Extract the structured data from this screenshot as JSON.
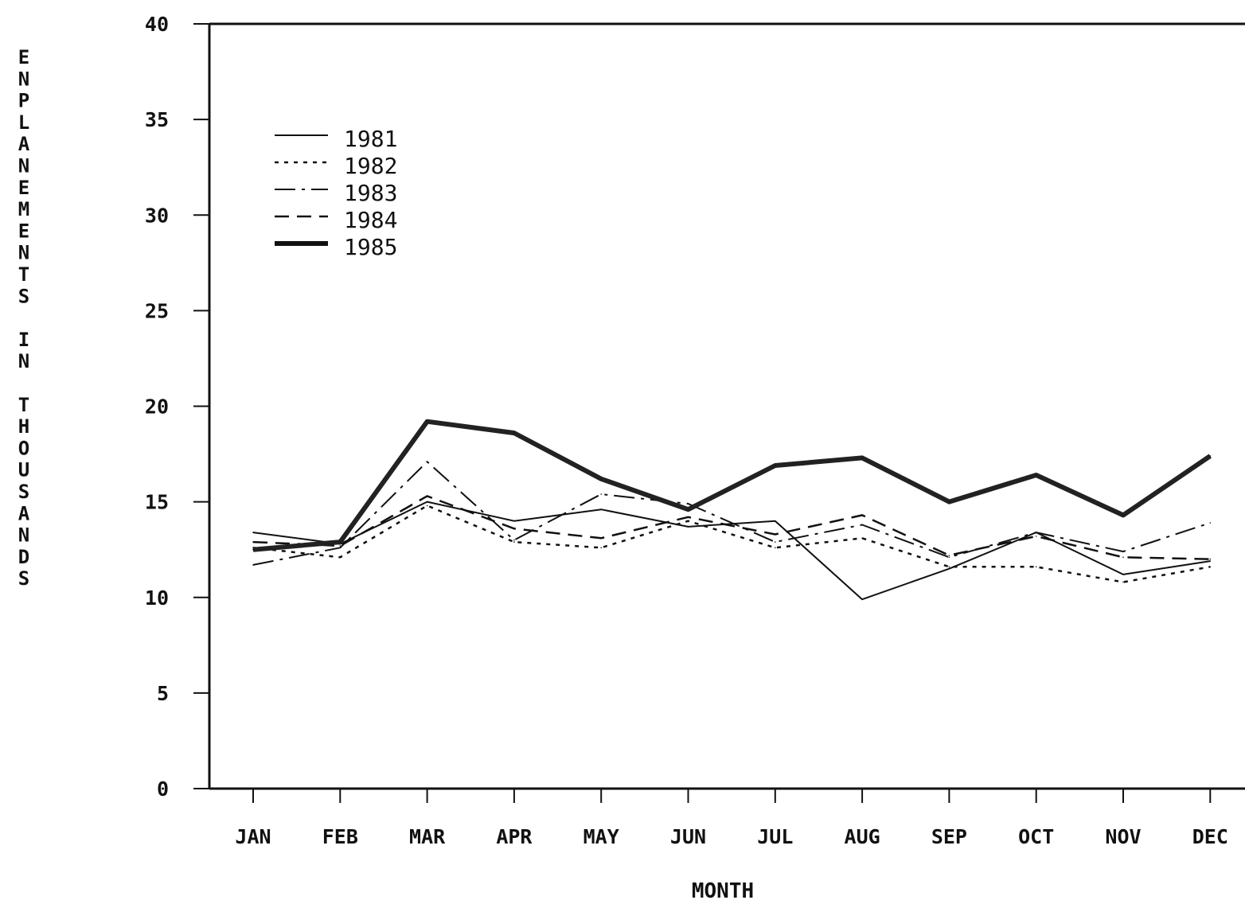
{
  "chart_data": {
    "type": "line",
    "title": "",
    "xlabel": "MONTH",
    "ylabel": "ENPLANEMENTS IN THOUSANDS",
    "categories": [
      "JAN",
      "FEB",
      "MAR",
      "APR",
      "MAY",
      "JUN",
      "JUL",
      "AUG",
      "SEP",
      "OCT",
      "NOV",
      "DEC"
    ],
    "ylim": [
      0,
      40
    ],
    "yticks": [
      0,
      5,
      10,
      15,
      20,
      25,
      30,
      35,
      40
    ],
    "ytick_labels": [
      "0",
      "5",
      "10",
      "15",
      "20",
      "25",
      "30",
      "35",
      "40"
    ],
    "grid": false,
    "legend_position": "top-left",
    "series": [
      {
        "name": "1981",
        "style": "solid",
        "values": [
          13.4,
          12.8,
          15.0,
          14.0,
          14.6,
          13.7,
          14.0,
          9.9,
          11.5,
          13.4,
          11.2,
          11.9
        ]
      },
      {
        "name": "1982",
        "style": "dotted",
        "values": [
          12.6,
          12.1,
          14.8,
          12.9,
          12.6,
          14.0,
          12.6,
          13.1,
          11.6,
          11.6,
          10.8,
          11.6
        ]
      },
      {
        "name": "1983",
        "style": "dashdot",
        "values": [
          11.7,
          12.6,
          17.1,
          13.0,
          15.4,
          14.9,
          12.9,
          13.8,
          12.1,
          13.4,
          12.4,
          13.9
        ]
      },
      {
        "name": "1984",
        "style": "dashed",
        "values": [
          12.9,
          12.7,
          15.3,
          13.6,
          13.1,
          14.2,
          13.3,
          14.3,
          12.2,
          13.2,
          12.1,
          12.0
        ]
      },
      {
        "name": "1985",
        "style": "thick",
        "values": [
          12.5,
          12.9,
          19.2,
          18.6,
          16.2,
          14.6,
          16.9,
          17.3,
          15.0,
          16.4,
          14.3,
          17.4
        ]
      }
    ]
  }
}
